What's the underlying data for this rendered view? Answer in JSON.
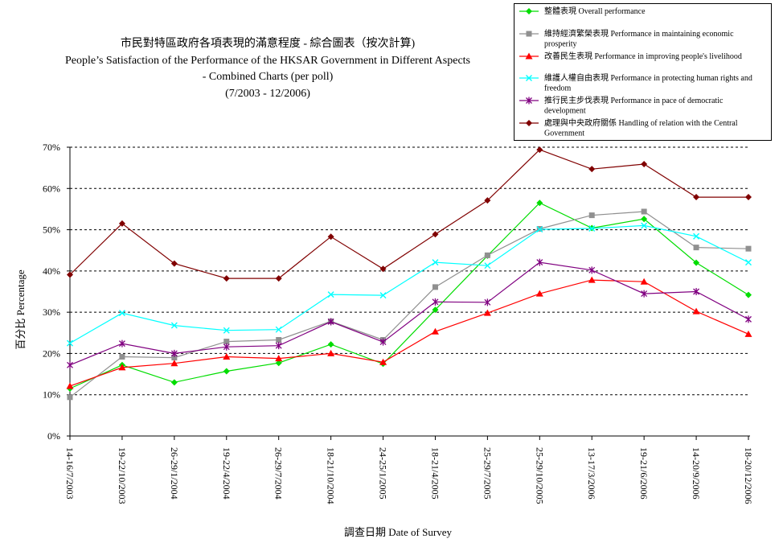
{
  "chart_data": {
    "type": "line",
    "title_lines": [
      "市民對特區政府各項表現的滿意程度 - 綜合圖表（按次計算)",
      "People’s Satisfaction of the Performance of the HKSAR Government in Different Aspects",
      "- Combined Charts  (per poll)",
      "(7/2003 - 12/2006)"
    ],
    "xlabel": "調查日期 Date of Survey",
    "ylabel": "百分比 Percentage",
    "ylim": [
      0,
      70
    ],
    "y_ticks": [
      "0%",
      "10%",
      "20%",
      "30%",
      "40%",
      "50%",
      "60%",
      "70%"
    ],
    "grid": "horizontal dashed",
    "legend_position": "top-right",
    "categories": [
      "14-16/7/2003",
      "19-22/10/2003",
      "26-29/1/2004",
      "19-22/4/2004",
      "26-29/7/2004",
      "18-21/10/2004",
      "24-25/1/2005",
      "18-21/4/2005",
      "25-29/7/2005",
      "25-29/10/2005",
      "13-17/3/2006",
      "19-21/6/2006",
      "14-20/9/2006",
      "18-20/12/2006"
    ],
    "series": [
      {
        "name_lines": [
          "整體表現 Overall performance"
        ],
        "color": "#00dd00",
        "marker": "diamond",
        "values": [
          11.5,
          17.2,
          13.0,
          15.7,
          17.7,
          22.2,
          17.5,
          30.6,
          43.7,
          56.5,
          50.4,
          52.6,
          42.0,
          34.2
        ]
      },
      {
        "name_lines": [
          "維持經濟繁榮表現 Performance in maintaining economic",
          "prosperity"
        ],
        "color": "#909090",
        "marker": "square",
        "values": [
          9.4,
          19.2,
          19.0,
          22.9,
          23.3,
          27.8,
          23.3,
          36.1,
          43.8,
          50.2,
          53.5,
          54.4,
          45.7,
          45.4
        ]
      },
      {
        "name_lines": [
          "改善民生表現 Performance in improving people's livelihood"
        ],
        "color": "#ff0000",
        "marker": "triangle",
        "values": [
          12.1,
          16.6,
          17.6,
          19.2,
          18.8,
          20.0,
          17.9,
          25.3,
          29.8,
          34.5,
          37.8,
          37.4,
          30.2,
          24.7
        ]
      },
      {
        "name_lines": [
          "維護人權自由表現 Performance in protecting human rights and",
          "freedom"
        ],
        "color": "#00ffff",
        "marker": "cross",
        "values": [
          22.5,
          29.8,
          26.8,
          25.6,
          25.8,
          34.3,
          34.1,
          42.1,
          41.3,
          50.1,
          50.3,
          51.0,
          48.4,
          42.1
        ]
      },
      {
        "name_lines": [
          "推行民主步伐表現 Performance in pace of democratic",
          "development"
        ],
        "color": "#800080",
        "marker": "star",
        "values": [
          17.2,
          22.4,
          20.0,
          21.6,
          21.9,
          27.7,
          22.8,
          32.5,
          32.4,
          42.1,
          40.2,
          34.5,
          35.0,
          28.3
        ]
      },
      {
        "name_lines": [
          "處理與中央政府關係 Handling of relation with the Central",
          "Government"
        ],
        "color": "#800000",
        "marker": "diamond",
        "values": [
          39.1,
          51.5,
          41.8,
          38.2,
          38.2,
          48.3,
          40.5,
          48.9,
          57.1,
          69.4,
          64.7,
          65.9,
          57.9,
          57.9
        ]
      }
    ]
  }
}
